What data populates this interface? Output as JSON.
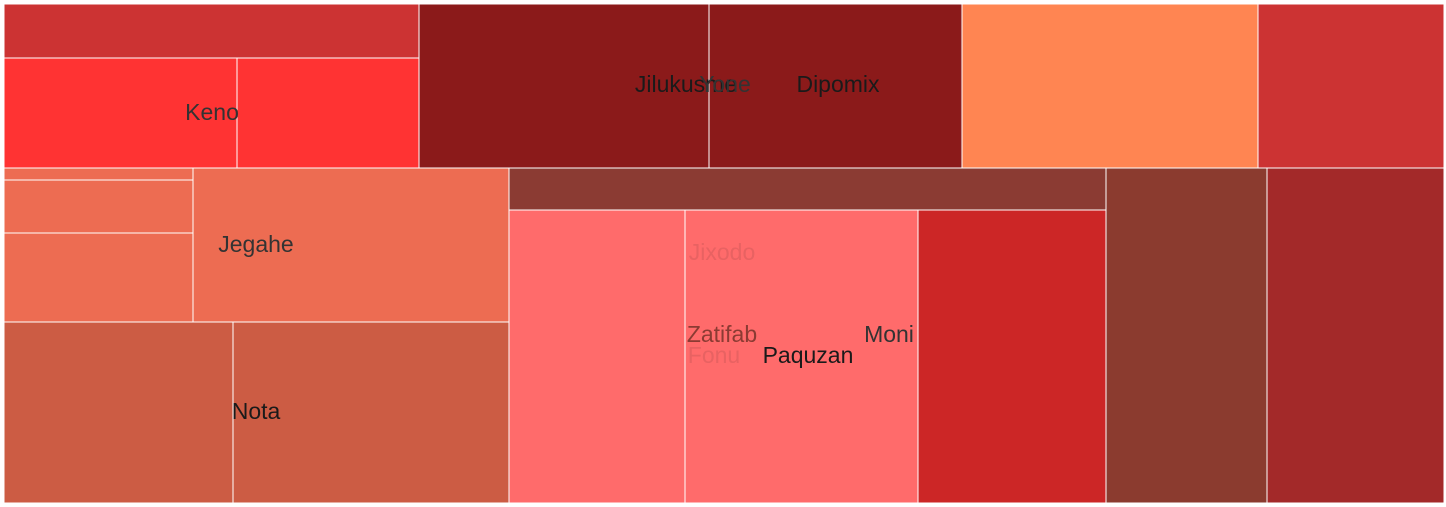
{
  "chart_data": {
    "type": "treemap",
    "title": "",
    "cells": [
      {
        "value": 2.2,
        "color": "#cc3333"
      },
      {
        "value": 2.0,
        "color": "#ff3333",
        "label": "Keno",
        "label_color": "#333333"
      },
      {
        "value": 1.7,
        "color": "#ff3333"
      },
      {
        "value": 3.6,
        "color": "#8b1a1a",
        "label": "Jilukusme",
        "label_color": "#1a1a1a"
      },
      {
        "value": 3.0,
        "color": "#8b1a1a",
        "label": "Yone",
        "label_color": "#333333"
      },
      {
        "value": 3.0,
        "color": "#8b1a1a",
        "label": "Dipomix",
        "label_color": "#1a1a1a"
      },
      {
        "value": 3.7,
        "color": "#ff8552"
      },
      {
        "value": 2.3,
        "color": "#cc3333"
      },
      {
        "value": 0.07,
        "color": "#ed6c52"
      },
      {
        "value": 0.37,
        "color": "#ed6c52"
      },
      {
        "value": 0.63,
        "color": "#ed6c52"
      },
      {
        "value": 2.2,
        "color": "#ed6c52",
        "label": "Jegahe",
        "label_color": "#333333"
      },
      {
        "value": 1.5,
        "color": "#cc5c44"
      },
      {
        "value": 1.8,
        "color": "#cc5c44",
        "label": "Nota",
        "label_color": "#1a1a1a"
      },
      {
        "value": 1.4,
        "color": "#8b3b33"
      },
      {
        "value": 3.4,
        "color": "#ff6b6b"
      },
      {
        "value": 4.5,
        "color": "#ff6b6b",
        "label": "Jixodo",
        "label_color": "#e86262"
      },
      {
        "value": 3.6,
        "color": "#cc2626",
        "label": "Moni",
        "label_color": "#333333"
      },
      {
        "value": 3.1,
        "color": "#8b3b2f"
      },
      {
        "value": 3.4,
        "color": "#a32929"
      }
    ],
    "other_labels": [
      {
        "label": "Zatifab",
        "color": "#8b3b33"
      },
      {
        "label": "Fonu",
        "color": "#e86262"
      },
      {
        "label": "Paquzan",
        "color": "#1a1a1a"
      }
    ]
  }
}
